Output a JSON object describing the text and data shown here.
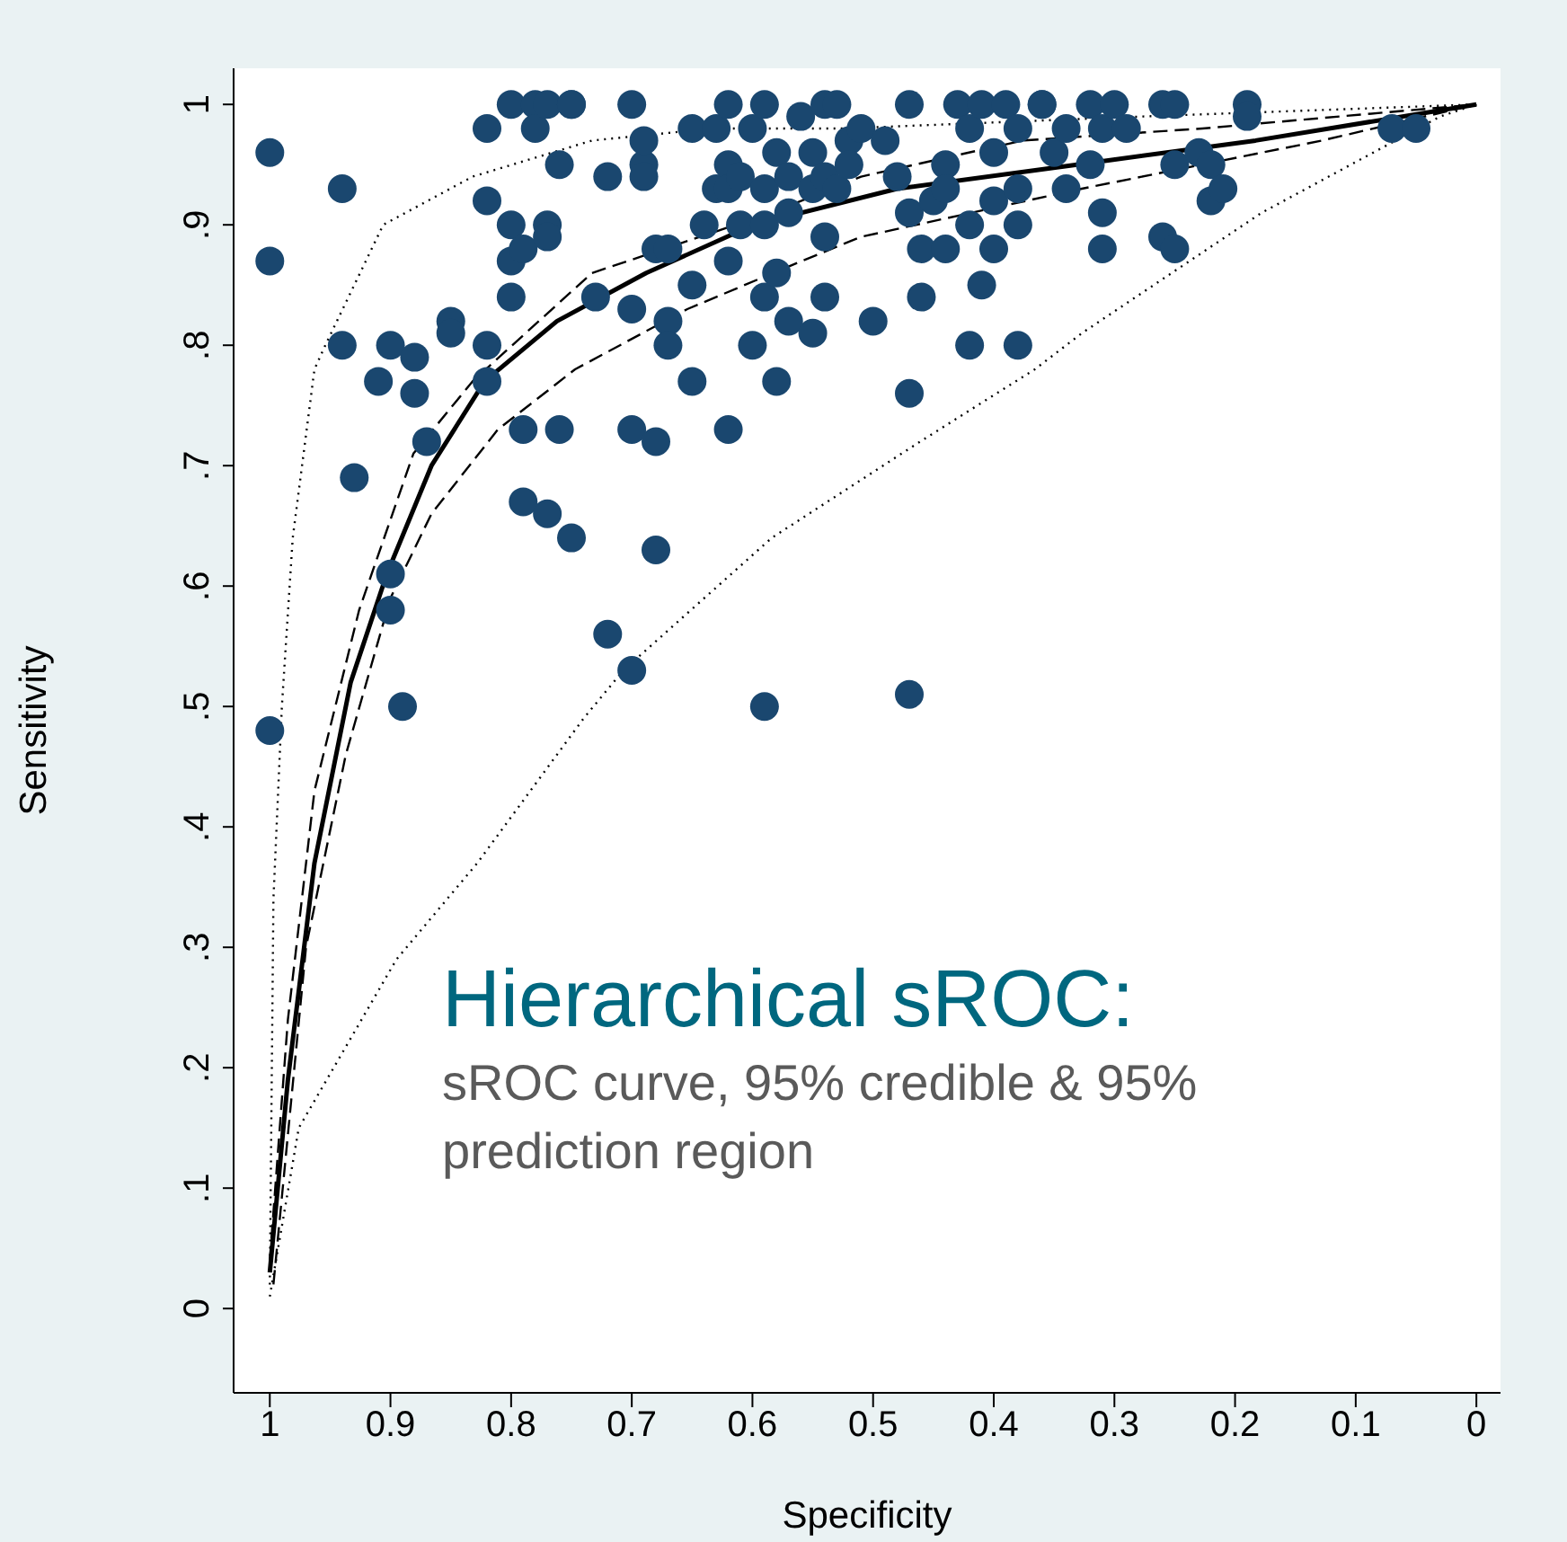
{
  "chart_data": {
    "type": "scatter",
    "xlabel": "Specificity",
    "ylabel": "Sensitivity",
    "xlim": [
      1.03,
      -0.02
    ],
    "ylim": [
      -0.07,
      1.03
    ],
    "xticks": [
      1,
      0.9,
      0.8,
      0.7,
      0.6,
      0.5,
      0.4,
      0.3,
      0.2,
      0.1,
      0
    ],
    "yticks": [
      0,
      {
        "value": 0.1,
        "label": ".1"
      },
      {
        "value": 0.2,
        "label": ".2"
      },
      {
        "value": 0.3,
        "label": ".3"
      },
      {
        "value": 0.4,
        "label": ".4"
      },
      {
        "value": 0.5,
        "label": ".5"
      },
      {
        "value": 0.6,
        "label": ".6"
      },
      {
        "value": 0.7,
        "label": ".7"
      },
      {
        "value": 0.8,
        "label": ".8"
      },
      {
        "value": 0.9,
        "label": ".9"
      },
      1
    ],
    "grid": false,
    "legend": false,
    "annotations": [
      "Hierarchical sROC:",
      "sROC curve, 95% credible & 95% prediction region"
    ],
    "series": [
      {
        "type": "scatter",
        "color": "#1a476f",
        "marker": "circle",
        "x": [
          1,
          1,
          1,
          0.94,
          0.94,
          0.93,
          0.91,
          0.9,
          0.9,
          0.9,
          0.89,
          0.88,
          0.88,
          0.87,
          0.85,
          0.85,
          0.82,
          0.82,
          0.82,
          0.82,
          0.8,
          0.8,
          0.8,
          0.8,
          0.79,
          0.79,
          0.79,
          0.78,
          0.78,
          0.77,
          0.77,
          0.77,
          0.77,
          0.76,
          0.76,
          0.75,
          0.75,
          0.75,
          0.73,
          0.72,
          0.72,
          0.7,
          0.7,
          0.7,
          0.7,
          0.69,
          0.69,
          0.69,
          0.68,
          0.68,
          0.68,
          0.67,
          0.67,
          0.67,
          0.65,
          0.65,
          0.65,
          0.64,
          0.63,
          0.63,
          0.62,
          0.62,
          0.62,
          0.62,
          0.62,
          0.61,
          0.61,
          0.6,
          0.6,
          0.59,
          0.59,
          0.59,
          0.59,
          0.59,
          0.58,
          0.58,
          0.58,
          0.57,
          0.57,
          0.57,
          0.56,
          0.55,
          0.55,
          0.55,
          0.54,
          0.54,
          0.54,
          0.54,
          0.53,
          0.53,
          0.52,
          0.52,
          0.51,
          0.5,
          0.49,
          0.48,
          0.47,
          0.47,
          0.47,
          0.47,
          0.46,
          0.46,
          0.45,
          0.44,
          0.44,
          0.44,
          0.43,
          0.42,
          0.42,
          0.42,
          0.41,
          0.41,
          0.4,
          0.4,
          0.4,
          0.39,
          0.38,
          0.38,
          0.38,
          0.38,
          0.36,
          0.36,
          0.35,
          0.34,
          0.34,
          0.32,
          0.32,
          0.31,
          0.31,
          0.31,
          0.3,
          0.29,
          0.26,
          0.26,
          0.25,
          0.25,
          0.25,
          0.23,
          0.22,
          0.22,
          0.21,
          0.19,
          0.19,
          0.07,
          0.05
        ],
        "values": [
          0.96,
          0.87,
          0.48,
          0.93,
          0.8,
          0.69,
          0.77,
          0.8,
          0.61,
          0.58,
          0.5,
          0.79,
          0.76,
          0.72,
          0.82,
          0.81,
          0.98,
          0.92,
          0.8,
          0.77,
          1,
          0.87,
          0.84,
          0.9,
          0.88,
          0.73,
          0.67,
          1,
          0.98,
          0.9,
          0.89,
          1,
          0.66,
          0.95,
          0.73,
          0.64,
          1,
          1,
          0.84,
          0.56,
          0.94,
          1,
          0.83,
          0.73,
          0.53,
          0.95,
          0.94,
          0.97,
          0.72,
          0.88,
          0.63,
          0.82,
          0.8,
          0.88,
          0.85,
          0.77,
          0.98,
          0.9,
          0.93,
          0.98,
          0.95,
          0.73,
          0.87,
          0.93,
          1,
          0.9,
          0.94,
          0.98,
          0.8,
          1,
          0.9,
          0.93,
          0.84,
          0.5,
          0.77,
          0.86,
          0.96,
          0.82,
          0.91,
          0.94,
          0.99,
          0.93,
          0.81,
          0.96,
          1,
          0.89,
          0.84,
          0.94,
          1,
          0.93,
          0.97,
          0.95,
          0.98,
          0.82,
          0.97,
          0.94,
          0.91,
          0.76,
          0.51,
          1,
          0.88,
          0.84,
          0.92,
          0.95,
          0.88,
          0.93,
          1,
          0.9,
          0.98,
          0.8,
          1,
          0.85,
          0.96,
          0.88,
          0.92,
          1,
          0.9,
          0.8,
          0.98,
          0.93,
          1,
          1,
          0.96,
          0.93,
          0.98,
          1,
          0.95,
          0.88,
          0.91,
          0.98,
          1,
          0.98,
          0.89,
          1,
          0.95,
          0.88,
          1,
          0.96,
          0.95,
          0.92,
          0.93,
          1,
          0.99,
          0.98,
          0.98
        ]
      },
      {
        "type": "line",
        "color": "#000000",
        "line_style": "solid",
        "marker": "none",
        "x": [
          1,
          0.985,
          0.963,
          0.933,
          0.903,
          0.866,
          0.822,
          0.762,
          0.688,
          0.599,
          0.48,
          0.331,
          0.183,
          0
        ],
        "values": [
          0.03,
          0.19,
          0.37,
          0.52,
          0.61,
          0.7,
          0.77,
          0.82,
          0.86,
          0.9,
          0.93,
          0.95,
          0.97,
          1
        ]
      },
      {
        "type": "line",
        "color": "#000000",
        "line_style": "dashed",
        "marker": "none",
        "x": [
          1,
          0.985,
          0.963,
          0.926,
          0.881,
          0.832,
          0.733,
          0.584,
          0.51,
          0.376,
          0.227,
          0
        ],
        "values": [
          0.04,
          0.24,
          0.43,
          0.58,
          0.71,
          0.77,
          0.86,
          0.91,
          0.94,
          0.97,
          0.98,
          1
        ]
      },
      {
        "type": "line",
        "color": "#000000",
        "line_style": "dashed",
        "marker": "none",
        "x": [
          0.997,
          0.97,
          0.937,
          0.9,
          0.866,
          0.811,
          0.747,
          0.654,
          0.559,
          0.51,
          0.327,
          0.128,
          0
        ],
        "values": [
          0.02,
          0.3,
          0.46,
          0.59,
          0.66,
          0.73,
          0.78,
          0.83,
          0.87,
          0.89,
          0.93,
          0.97,
          1
        ]
      },
      {
        "type": "line",
        "color": "#000000",
        "line_style": "dotted",
        "marker": "none",
        "x": [
          1,
          0.997,
          0.99,
          0.981,
          0.963,
          0.954,
          0.906,
          0.832,
          0.733,
          0.633,
          0.525,
          0.276,
          0
        ],
        "values": [
          0.02,
          0.34,
          0.5,
          0.64,
          0.78,
          0.8,
          0.9,
          0.94,
          0.97,
          0.98,
          0.98,
          0.99,
          1
        ]
      },
      {
        "type": "line",
        "color": "#000000",
        "line_style": "dotted",
        "marker": "none",
        "x": [
          1,
          0.976,
          0.895,
          0.828,
          0.74,
          0.707,
          0.584,
          0.461,
          0.366,
          0.327,
          0.178,
          0.03,
          0
        ],
        "values": [
          0.01,
          0.15,
          0.29,
          0.37,
          0.49,
          0.53,
          0.64,
          0.72,
          0.78,
          0.81,
          0.91,
          0.99,
          1
        ]
      }
    ]
  }
}
